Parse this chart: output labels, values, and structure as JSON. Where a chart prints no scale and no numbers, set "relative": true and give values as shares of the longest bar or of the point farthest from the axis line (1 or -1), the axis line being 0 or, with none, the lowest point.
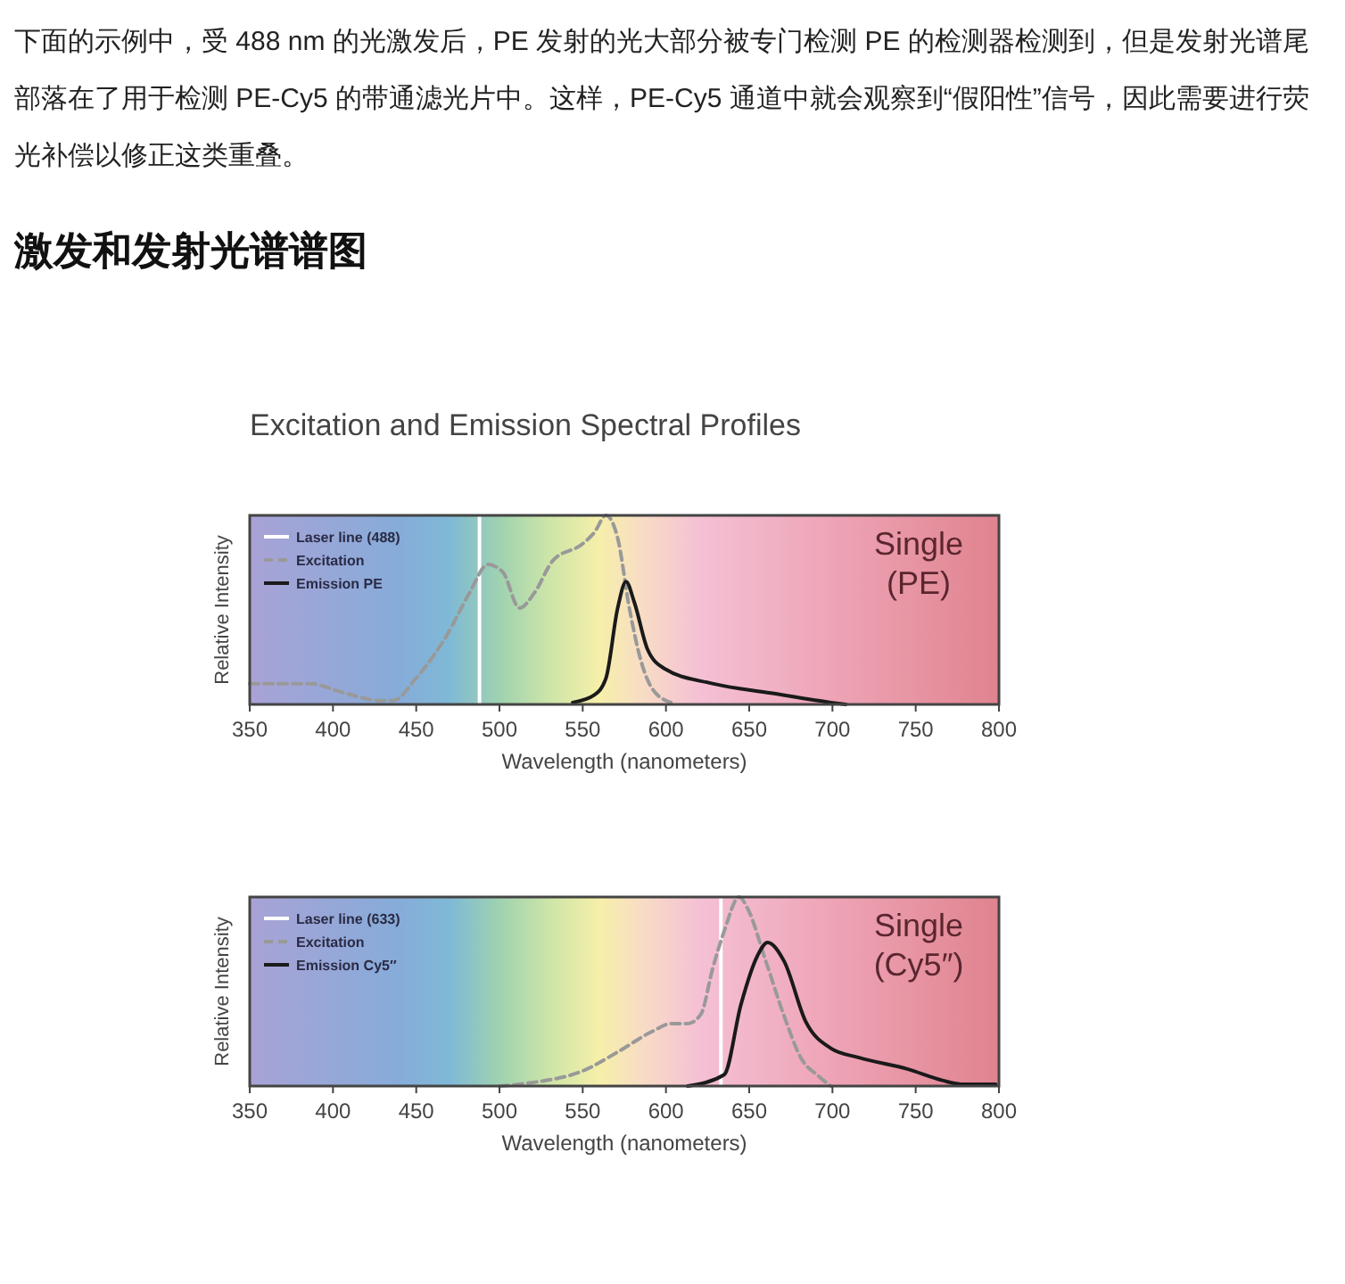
{
  "chart_data": [
    {
      "type": "line",
      "title": "激发和发射光谱谱图",
      "subtitle": "Excitation and Emission Spectral Profiles",
      "xlabel": "Wavelength (nanometers)",
      "ylabel": "Relative Intensity",
      "relative": true,
      "annotations": [
        "下面的示例中，受 488 nm 的光激发后，PE 发射的光大部分被专门检测 PE 的检测器检测到，但是发射光谱尾部落在了用于检测 PE-Cy5 的带通滤光片中。这样，PE-Cy5 通道中就会观察到“假阳性”信号，因此需要进行荧光补偿以修正这类重叠。",
        "Single (PE)"
      ],
      "xlim": [
        350,
        800
      ],
      "xticks": [
        350,
        400,
        450,
        500,
        550,
        600,
        650,
        700,
        750,
        800
      ],
      "tick_labels": "x",
      "legend": "top left",
      "marker": "none",
      "series": [
        {
          "name": "Laser line (488)",
          "color": "#ffffff",
          "line_style": "solid",
          "x": [
            488,
            488
          ],
          "values": [
            0,
            1
          ]
        },
        {
          "name": "Excitation",
          "color": "#999999",
          "line_style": "dashed",
          "x": [
            350,
            386,
            407,
            429,
            436,
            450,
            468,
            482,
            493,
            502,
            512,
            521,
            532,
            550,
            557,
            564,
            571,
            578,
            585,
            592,
            603
          ],
          "values": [
            0.11,
            0.11,
            0.06,
            0.02,
            0.02,
            0.14,
            0.36,
            0.59,
            0.74,
            0.7,
            0.51,
            0.59,
            0.76,
            0.85,
            0.91,
            1,
            0.88,
            0.51,
            0.23,
            0.08,
            0.01
          ]
        },
        {
          "name": "Emission PE",
          "color": "#1a1a1a",
          "line_style": "solid",
          "x": [
            544,
            557,
            564,
            571,
            576,
            581,
            589,
            599,
            628,
            663,
            699,
            708
          ],
          "values": [
            0.01,
            0.05,
            0.14,
            0.51,
            0.65,
            0.54,
            0.29,
            0.19,
            0.11,
            0.06,
            0.01,
            0
          ]
        }
      ]
    },
    {
      "type": "line",
      "xlabel": "Wavelength (nanometers)",
      "ylabel": "Relative Intensity",
      "relative": true,
      "annotations": [
        "Single (Cy5″)"
      ],
      "xlim": [
        350,
        800
      ],
      "xticks": [
        350,
        400,
        450,
        500,
        550,
        600,
        650,
        700,
        750,
        800
      ],
      "tick_labels": "x",
      "legend": "top left",
      "marker": "none",
      "series": [
        {
          "name": "Laser line (633)",
          "color": "#ffffff",
          "line_style": "solid",
          "x": [
            633,
            633
          ],
          "values": [
            0,
            1
          ]
        },
        {
          "name": "Excitation",
          "color": "#999999",
          "line_style": "dashed",
          "x": [
            500,
            521,
            550,
            571,
            592,
            603,
            613,
            621,
            628,
            635,
            644,
            649,
            660,
            671,
            681,
            692,
            699
          ],
          "values": [
            0,
            0.02,
            0.08,
            0.18,
            0.29,
            0.33,
            0.33,
            0.38,
            0.62,
            0.82,
            1,
            0.94,
            0.66,
            0.37,
            0.15,
            0.05,
            0
          ]
        },
        {
          "name": "Emission Cy5″",
          "color": "#1a1a1a",
          "line_style": "solid",
          "x": [
            613,
            635,
            645,
            655,
            661,
            671,
            684,
            699,
            716,
            745,
            766,
            777,
            798
          ],
          "values": [
            0,
            0.06,
            0.43,
            0.69,
            0.76,
            0.66,
            0.34,
            0.2,
            0.15,
            0.09,
            0.03,
            0.01,
            0.01
          ]
        }
      ]
    }
  ]
}
